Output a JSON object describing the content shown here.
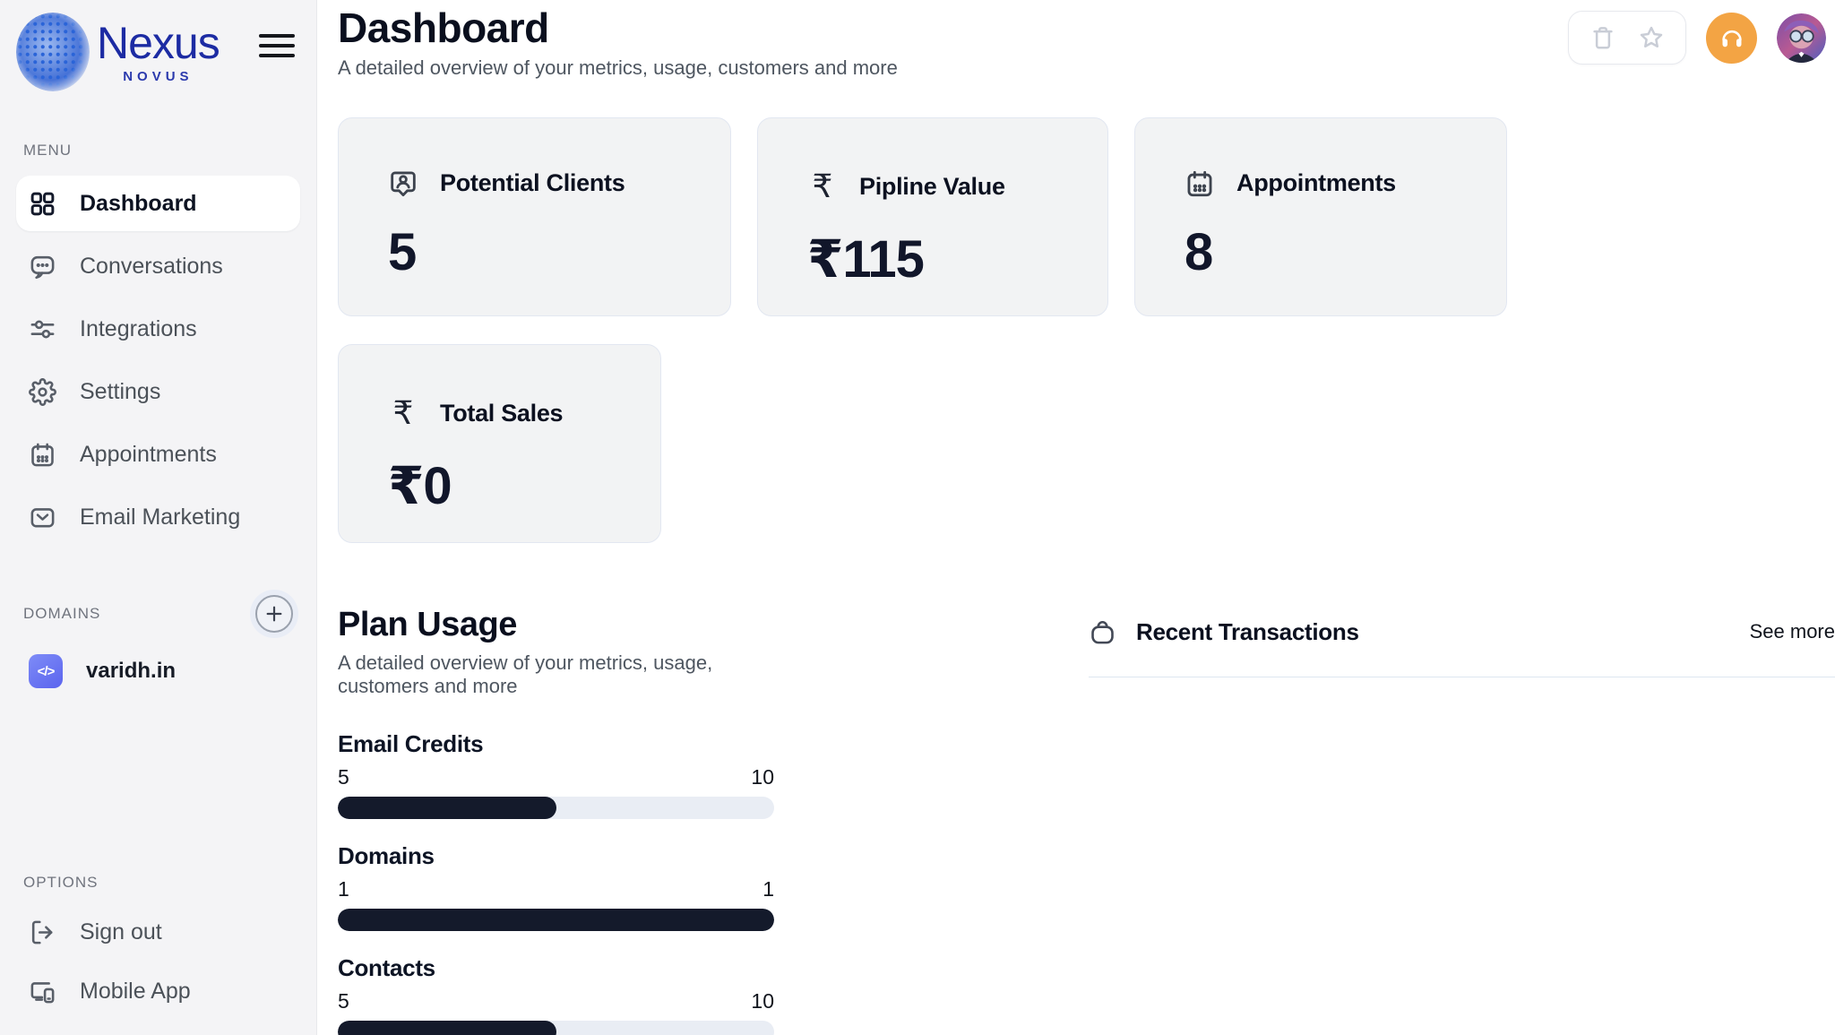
{
  "brand": {
    "name": "Nexus",
    "subname": "NOVUS"
  },
  "sidebar": {
    "menu_label": "MENU",
    "items": [
      {
        "label": "Dashboard",
        "active": true
      },
      {
        "label": "Conversations",
        "active": false
      },
      {
        "label": "Integrations",
        "active": false
      },
      {
        "label": "Settings",
        "active": false
      },
      {
        "label": "Appointments",
        "active": false
      },
      {
        "label": "Email Marketing",
        "active": false
      }
    ],
    "domains_label": "DOMAINS",
    "domains": [
      {
        "name": "varidh.in",
        "icon": "code-icon"
      }
    ],
    "options_label": "OPTIONS",
    "options": [
      {
        "label": "Sign out"
      },
      {
        "label": "Mobile App"
      }
    ]
  },
  "header": {
    "title": "Dashboard",
    "subtitle": "A detailed overview of your metrics, usage, customers and more"
  },
  "stats": [
    {
      "label": "Potential Clients",
      "value": "5",
      "icon": "user-badge-icon"
    },
    {
      "label": "Pipline Value",
      "value": "₹115",
      "icon": "rupee-icon"
    },
    {
      "label": "Appointments",
      "value": "8",
      "icon": "calendar-icon"
    },
    {
      "label": "Total Sales",
      "value": "₹0",
      "icon": "rupee-icon"
    }
  ],
  "rupee_symbol": "₹",
  "domain_icon_glyph": "</>",
  "plan_usage": {
    "title": "Plan Usage",
    "subtitle": "A detailed overview of your metrics, usage, customers and more",
    "items": [
      {
        "label": "Email Credits",
        "used": "5",
        "limit": "10",
        "percent": 50
      },
      {
        "label": "Domains",
        "used": "1",
        "limit": "1",
        "percent": 100
      },
      {
        "label": "Contacts",
        "used": "5",
        "limit": "10",
        "percent": 50
      }
    ]
  },
  "transactions": {
    "title": "Recent Transactions",
    "see_more": "See more"
  },
  "colors": {
    "accent_orange": "#f3a444",
    "brand_blue": "#1c2ba3",
    "progress_fill": "#141a2b",
    "progress_track": "#e9edf4",
    "sidebar_bg": "#f4f4f6",
    "card_bg": "#f2f3f4",
    "card_border": "#e2e7f1",
    "domain_badge": "#5b64ee"
  }
}
